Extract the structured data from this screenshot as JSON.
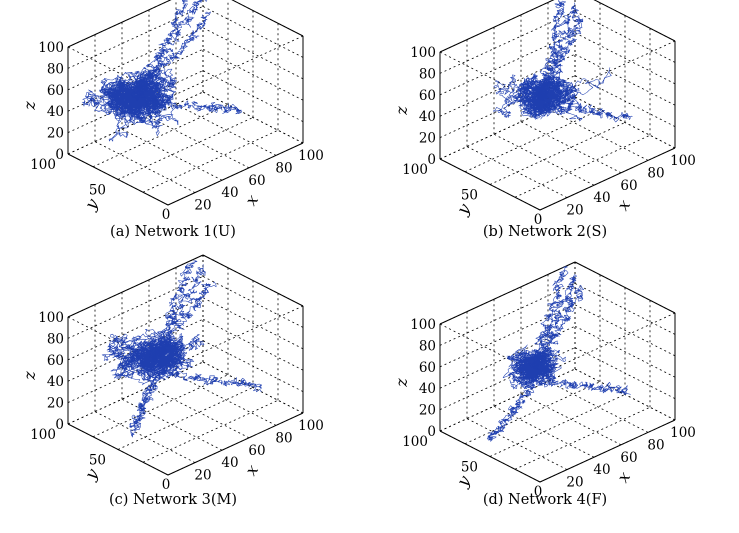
{
  "chart_data": [
    {
      "type": "scatter",
      "projection": "3d",
      "caption": "(a) Network 1(U)",
      "xlabel": "x",
      "ylabel": "y",
      "zlabel": "z",
      "xlim": [
        0,
        100
      ],
      "ylim": [
        0,
        100
      ],
      "zlim": [
        0,
        100
      ],
      "xticks": [
        "20",
        "40",
        "60",
        "80",
        "100"
      ],
      "yticks": [
        "50",
        "100"
      ],
      "zticks": [
        "0",
        "20",
        "40",
        "60",
        "80",
        "100"
      ],
      "grid": true,
      "series_color": "#1f3fb0",
      "cluster": {
        "center": [
          25,
          65,
          55
        ],
        "spread": [
          22,
          22,
          16
        ],
        "steps": 6500
      },
      "branches": [
        {
          "start": [
            25,
            65,
            55
          ],
          "end": [
            92,
            100,
            100
          ]
        },
        {
          "start": [
            25,
            65,
            55
          ],
          "end": [
            100,
            92,
            78
          ]
        },
        {
          "start": [
            30,
            60,
            50
          ],
          "end": [
            98,
            55,
            5
          ]
        },
        {
          "start": [
            25,
            65,
            55
          ],
          "end": [
            100,
            100,
            90
          ]
        }
      ]
    },
    {
      "type": "scatter",
      "projection": "3d",
      "caption": "(b) Network 2(S)",
      "xlabel": "x",
      "ylabel": "y",
      "zlabel": "z",
      "xlim": [
        0,
        100
      ],
      "ylim": [
        0,
        100
      ],
      "zlim": [
        0,
        100
      ],
      "xticks": [
        "20",
        "40",
        "60",
        "80",
        "100"
      ],
      "yticks": [
        "50",
        "100"
      ],
      "zticks": [
        "0",
        "20",
        "40",
        "60",
        "80",
        "100"
      ],
      "grid": true,
      "series_color": "#1f3fb0",
      "cluster": {
        "center": [
          45,
          60,
          50
        ],
        "spread": [
          18,
          18,
          13
        ],
        "steps": 4200
      },
      "branches": [
        {
          "start": [
            45,
            60,
            50
          ],
          "end": [
            92,
            100,
            100
          ]
        },
        {
          "start": [
            45,
            60,
            50
          ],
          "end": [
            100,
            92,
            80
          ]
        },
        {
          "start": [
            45,
            55,
            45
          ],
          "end": [
            100,
            45,
            8
          ]
        },
        {
          "start": [
            45,
            60,
            50
          ],
          "end": [
            100,
            100,
            88
          ]
        }
      ]
    },
    {
      "type": "scatter",
      "projection": "3d",
      "caption": "(c) Network 3(M)",
      "xlabel": "x",
      "ylabel": "y",
      "zlabel": "z",
      "xlim": [
        0,
        100
      ],
      "ylim": [
        0,
        100
      ],
      "zlim": [
        0,
        100
      ],
      "xticks": [
        "20",
        "40",
        "60",
        "80",
        "100"
      ],
      "yticks": [
        "50",
        "100"
      ],
      "zticks": [
        "0",
        "20",
        "40",
        "60",
        "80",
        "100"
      ],
      "grid": true,
      "series_color": "#1f3fb0",
      "cluster": {
        "center": [
          35,
          60,
          60
        ],
        "spread": [
          20,
          20,
          12
        ],
        "steps": 5200
      },
      "branches": [
        {
          "start": [
            35,
            60,
            60
          ],
          "end": [
            92,
            100,
            100
          ]
        },
        {
          "start": [
            35,
            60,
            60
          ],
          "end": [
            100,
            92,
            78
          ]
        },
        {
          "start": [
            35,
            55,
            50
          ],
          "end": [
            100,
            40,
            5
          ]
        },
        {
          "start": [
            30,
            55,
            45
          ],
          "end": [
            15,
            55,
            5
          ]
        },
        {
          "start": [
            35,
            60,
            60
          ],
          "end": [
            100,
            100,
            88
          ]
        }
      ]
    },
    {
      "type": "scatter",
      "projection": "3d",
      "caption": "(d) Network 4(F)",
      "xlabel": "x",
      "ylabel": "y",
      "zlabel": "z",
      "xlim": [
        0,
        100
      ],
      "ylim": [
        0,
        100
      ],
      "zlim": [
        0,
        100
      ],
      "xticks": [
        "20",
        "40",
        "60",
        "80",
        "100"
      ],
      "yticks": [
        "50",
        "100"
      ],
      "zticks": [
        "0",
        "20",
        "40",
        "60",
        "80",
        "100"
      ],
      "grid": true,
      "series_color": "#1f3fb0",
      "cluster": {
        "center": [
          40,
          60,
          55
        ],
        "spread": [
          13,
          13,
          11
        ],
        "steps": 3600
      },
      "branches": [
        {
          "start": [
            40,
            60,
            55
          ],
          "end": [
            92,
            100,
            100
          ]
        },
        {
          "start": [
            40,
            60,
            55
          ],
          "end": [
            100,
            92,
            80
          ]
        },
        {
          "start": [
            40,
            55,
            45
          ],
          "end": [
            100,
            45,
            5
          ]
        },
        {
          "start": [
            35,
            55,
            45
          ],
          "end": [
            8,
            60,
            5
          ]
        },
        {
          "start": [
            40,
            60,
            55
          ],
          "end": [
            100,
            100,
            88
          ]
        }
      ]
    }
  ]
}
